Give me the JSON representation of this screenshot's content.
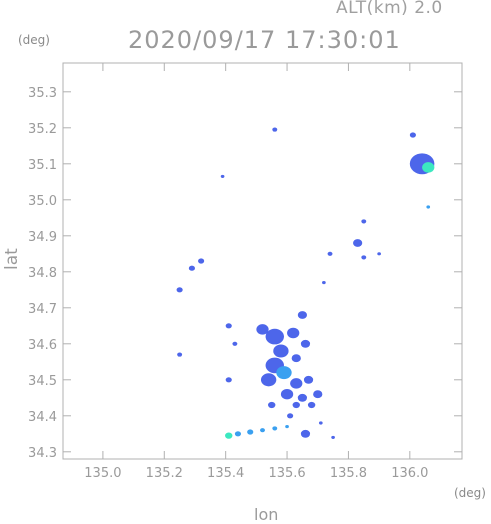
{
  "header": {
    "altitude_label": "ALT(km) 2.0",
    "timestamp": "2020/09/17 17:30:01"
  },
  "chart_data": {
    "type": "heatmap",
    "title": "2020/09/17 17:30:01",
    "xlabel": "lon",
    "ylabel": "lat",
    "x_unit": "(deg)",
    "y_unit": "(deg)",
    "xlim": [
      134.87,
      136.17
    ],
    "ylim": [
      34.28,
      35.38
    ],
    "x_ticks": [
      "135.0",
      "135.2",
      "135.4",
      "135.6",
      "135.8",
      "136.0"
    ],
    "x_tick_values": [
      135.0,
      135.2,
      135.4,
      135.6,
      135.8,
      136.0
    ],
    "y_ticks": [
      "34.3",
      "34.4",
      "34.5",
      "34.6",
      "34.7",
      "34.8",
      "34.9",
      "35.0",
      "35.1",
      "35.2",
      "35.3"
    ],
    "y_tick_values": [
      34.3,
      34.4,
      34.5,
      34.6,
      34.7,
      34.8,
      34.9,
      35.0,
      35.1,
      35.2,
      35.3
    ],
    "grid": false,
    "colors": {
      "weak": "#3a55e8",
      "moderate": "#3aa0f0",
      "strong": "#3ce8c0",
      "axis": "#b0b0b0"
    },
    "echoes": [
      {
        "lon": 135.56,
        "lat": 35.195,
        "size": 0.008,
        "level": "weak"
      },
      {
        "lon": 135.39,
        "lat": 35.065,
        "size": 0.006,
        "level": "weak"
      },
      {
        "lon": 136.01,
        "lat": 35.18,
        "size": 0.01,
        "level": "weak"
      },
      {
        "lon": 136.04,
        "lat": 35.1,
        "size": 0.04,
        "level": "weak"
      },
      {
        "lon": 136.06,
        "lat": 35.09,
        "size": 0.02,
        "level": "strong"
      },
      {
        "lon": 136.06,
        "lat": 34.98,
        "size": 0.006,
        "level": "moderate"
      },
      {
        "lon": 135.85,
        "lat": 34.94,
        "size": 0.008,
        "level": "weak"
      },
      {
        "lon": 135.83,
        "lat": 34.88,
        "size": 0.015,
        "level": "weak"
      },
      {
        "lon": 135.85,
        "lat": 34.84,
        "size": 0.008,
        "level": "weak"
      },
      {
        "lon": 135.9,
        "lat": 34.85,
        "size": 0.006,
        "level": "weak"
      },
      {
        "lon": 135.74,
        "lat": 34.85,
        "size": 0.008,
        "level": "weak"
      },
      {
        "lon": 135.72,
        "lat": 34.77,
        "size": 0.006,
        "level": "weak"
      },
      {
        "lon": 135.32,
        "lat": 34.83,
        "size": 0.01,
        "level": "weak"
      },
      {
        "lon": 135.29,
        "lat": 34.81,
        "size": 0.01,
        "level": "weak"
      },
      {
        "lon": 135.25,
        "lat": 34.75,
        "size": 0.01,
        "level": "weak"
      },
      {
        "lon": 135.25,
        "lat": 34.57,
        "size": 0.008,
        "level": "weak"
      },
      {
        "lon": 135.41,
        "lat": 34.65,
        "size": 0.01,
        "level": "weak"
      },
      {
        "lon": 135.43,
        "lat": 34.6,
        "size": 0.008,
        "level": "weak"
      },
      {
        "lon": 135.52,
        "lat": 34.64,
        "size": 0.02,
        "level": "weak"
      },
      {
        "lon": 135.56,
        "lat": 34.62,
        "size": 0.03,
        "level": "weak"
      },
      {
        "lon": 135.62,
        "lat": 34.63,
        "size": 0.02,
        "level": "weak"
      },
      {
        "lon": 135.65,
        "lat": 34.68,
        "size": 0.015,
        "level": "weak"
      },
      {
        "lon": 135.66,
        "lat": 34.6,
        "size": 0.015,
        "level": "weak"
      },
      {
        "lon": 135.58,
        "lat": 34.58,
        "size": 0.025,
        "level": "weak"
      },
      {
        "lon": 135.63,
        "lat": 34.56,
        "size": 0.015,
        "level": "weak"
      },
      {
        "lon": 135.56,
        "lat": 34.54,
        "size": 0.03,
        "level": "weak"
      },
      {
        "lon": 135.59,
        "lat": 34.52,
        "size": 0.025,
        "level": "moderate"
      },
      {
        "lon": 135.63,
        "lat": 34.49,
        "size": 0.02,
        "level": "weak"
      },
      {
        "lon": 135.67,
        "lat": 34.5,
        "size": 0.015,
        "level": "weak"
      },
      {
        "lon": 135.54,
        "lat": 34.5,
        "size": 0.025,
        "level": "weak"
      },
      {
        "lon": 135.6,
        "lat": 34.46,
        "size": 0.02,
        "level": "weak"
      },
      {
        "lon": 135.65,
        "lat": 34.45,
        "size": 0.015,
        "level": "weak"
      },
      {
        "lon": 135.7,
        "lat": 34.46,
        "size": 0.015,
        "level": "weak"
      },
      {
        "lon": 135.41,
        "lat": 34.5,
        "size": 0.01,
        "level": "weak"
      },
      {
        "lon": 135.55,
        "lat": 34.43,
        "size": 0.012,
        "level": "weak"
      },
      {
        "lon": 135.63,
        "lat": 34.43,
        "size": 0.012,
        "level": "weak"
      },
      {
        "lon": 135.68,
        "lat": 34.43,
        "size": 0.012,
        "level": "weak"
      },
      {
        "lon": 135.61,
        "lat": 34.4,
        "size": 0.01,
        "level": "weak"
      },
      {
        "lon": 135.66,
        "lat": 34.35,
        "size": 0.015,
        "level": "weak"
      },
      {
        "lon": 135.71,
        "lat": 34.38,
        "size": 0.006,
        "level": "weak"
      },
      {
        "lon": 135.75,
        "lat": 34.34,
        "size": 0.006,
        "level": "weak"
      },
      {
        "lon": 135.41,
        "lat": 34.345,
        "size": 0.012,
        "level": "strong"
      },
      {
        "lon": 135.44,
        "lat": 34.35,
        "size": 0.01,
        "level": "moderate"
      },
      {
        "lon": 135.48,
        "lat": 34.355,
        "size": 0.01,
        "level": "moderate"
      },
      {
        "lon": 135.52,
        "lat": 34.36,
        "size": 0.008,
        "level": "moderate"
      },
      {
        "lon": 135.56,
        "lat": 34.365,
        "size": 0.008,
        "level": "moderate"
      },
      {
        "lon": 135.6,
        "lat": 34.37,
        "size": 0.006,
        "level": "moderate"
      }
    ]
  }
}
